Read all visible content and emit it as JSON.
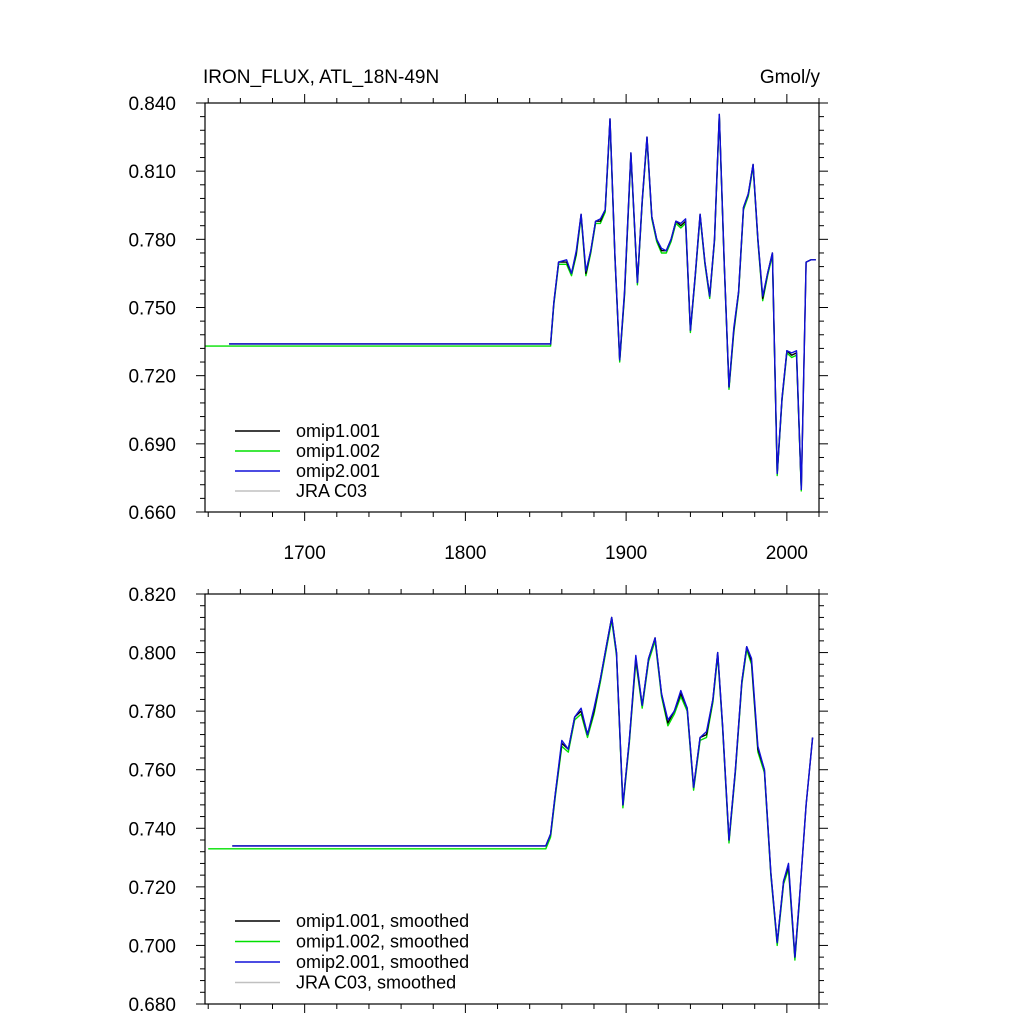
{
  "colors": {
    "omip1_001": "#000000",
    "omip1_002": "#00e000",
    "omip2_001": "#1010d8",
    "jra_c03": "#c0c0c0"
  },
  "chart_data": [
    {
      "type": "line",
      "title": "IRON_FLUX, ATL_18N-49N",
      "units": "Gmol/y",
      "xlim": [
        1638,
        2020
      ],
      "ylim": [
        0.66,
        0.84
      ],
      "yticks": [
        "0.660",
        "0.690",
        "0.720",
        "0.750",
        "0.780",
        "0.810",
        "0.840"
      ],
      "ytick_values": [
        0.66,
        0.69,
        0.72,
        0.75,
        0.78,
        0.81,
        0.84
      ],
      "xticks": [
        "1700",
        "1800",
        "1900",
        "2000"
      ],
      "xtick_values": [
        1700,
        1800,
        1900,
        2000
      ],
      "legend_position": "bottom-left",
      "series": [
        {
          "name": "omip1.001",
          "color_key": "omip1_001",
          "x": [
            1653,
            1853,
            1855,
            1858,
            1863,
            1866,
            1869,
            1872,
            1875,
            1878,
            1881,
            1884,
            1887,
            1890,
            1893,
            1896,
            1899,
            1903,
            1907,
            1910,
            1913,
            1916,
            1919,
            1922,
            1925,
            1928,
            1931,
            1934,
            1937,
            1940,
            1943,
            1946,
            1949,
            1952,
            1955,
            1958,
            1961,
            1964,
            1967,
            1970,
            1973,
            1976,
            1979,
            1982,
            1985,
            1988,
            1991,
            1994,
            1997,
            2000,
            2003,
            2006,
            2009,
            2012,
            2015,
            2018
          ],
          "y": [
            0.734,
            0.734,
            0.752,
            0.77,
            0.77,
            0.765,
            0.774,
            0.791,
            0.765,
            0.775,
            0.788,
            0.788,
            0.793,
            0.833,
            0.773,
            0.727,
            0.756,
            0.818,
            0.761,
            0.797,
            0.825,
            0.79,
            0.78,
            0.775,
            0.775,
            0.78,
            0.788,
            0.786,
            0.788,
            0.74,
            0.764,
            0.791,
            0.77,
            0.755,
            0.78,
            0.835,
            0.77,
            0.715,
            0.74,
            0.757,
            0.794,
            0.8,
            0.813,
            0.78,
            0.754,
            0.765,
            0.774,
            0.677,
            0.71,
            0.731,
            0.729,
            0.73,
            0.67,
            0.77,
            0.771,
            0.771
          ]
        },
        {
          "name": "omip1.002",
          "color_key": "omip1_002",
          "x": [
            1638,
            1853,
            1855,
            1858,
            1863,
            1866,
            1869,
            1872,
            1875,
            1878,
            1881,
            1884,
            1887,
            1890,
            1893,
            1896,
            1899,
            1903,
            1907,
            1910,
            1913,
            1916,
            1919,
            1922,
            1925,
            1928,
            1931,
            1934,
            1937,
            1940,
            1943,
            1946,
            1949,
            1952,
            1955,
            1958,
            1961,
            1964,
            1967,
            1970,
            1973,
            1976,
            1979,
            1982,
            1985,
            1988,
            1991,
            1994,
            1997,
            2000,
            2003,
            2006,
            2009
          ],
          "y": [
            0.733,
            0.733,
            0.751,
            0.769,
            0.769,
            0.764,
            0.773,
            0.79,
            0.764,
            0.774,
            0.787,
            0.787,
            0.792,
            0.832,
            0.772,
            0.726,
            0.755,
            0.817,
            0.76,
            0.796,
            0.824,
            0.789,
            0.779,
            0.774,
            0.774,
            0.779,
            0.787,
            0.785,
            0.787,
            0.739,
            0.763,
            0.79,
            0.769,
            0.754,
            0.779,
            0.834,
            0.769,
            0.714,
            0.739,
            0.756,
            0.793,
            0.799,
            0.812,
            0.779,
            0.753,
            0.764,
            0.773,
            0.676,
            0.709,
            0.73,
            0.728,
            0.729,
            0.669
          ]
        },
        {
          "name": "omip2.001",
          "color_key": "omip2_001",
          "x": [
            1653,
            1853,
            1855,
            1858,
            1863,
            1866,
            1869,
            1872,
            1875,
            1878,
            1881,
            1884,
            1887,
            1890,
            1893,
            1896,
            1899,
            1903,
            1907,
            1910,
            1913,
            1916,
            1919,
            1922,
            1925,
            1928,
            1931,
            1934,
            1937,
            1940,
            1943,
            1946,
            1949,
            1952,
            1955,
            1958,
            1961,
            1964,
            1967,
            1970,
            1973,
            1976,
            1979,
            1982,
            1985,
            1988,
            1991,
            1994,
            1997,
            2000,
            2003,
            2006,
            2009,
            2012,
            2015,
            2018
          ],
          "y": [
            0.734,
            0.734,
            0.752,
            0.77,
            0.771,
            0.765,
            0.775,
            0.791,
            0.766,
            0.775,
            0.788,
            0.789,
            0.793,
            0.833,
            0.773,
            0.727,
            0.757,
            0.818,
            0.761,
            0.797,
            0.825,
            0.79,
            0.78,
            0.776,
            0.775,
            0.78,
            0.788,
            0.787,
            0.789,
            0.74,
            0.764,
            0.791,
            0.77,
            0.755,
            0.78,
            0.835,
            0.77,
            0.715,
            0.741,
            0.757,
            0.794,
            0.8,
            0.813,
            0.78,
            0.755,
            0.765,
            0.774,
            0.677,
            0.71,
            0.731,
            0.73,
            0.731,
            0.67,
            0.77,
            0.771,
            0.771
          ]
        },
        {
          "name": "JRA C03",
          "color_key": "jra_c03",
          "x": [],
          "y": []
        }
      ]
    },
    {
      "type": "line",
      "title": "",
      "units": "",
      "xlim": [
        1638,
        2020
      ],
      "ylim": [
        0.68,
        0.82
      ],
      "yticks": [
        "0.680",
        "0.700",
        "0.720",
        "0.740",
        "0.760",
        "0.780",
        "0.800",
        "0.820"
      ],
      "ytick_values": [
        0.68,
        0.7,
        0.72,
        0.74,
        0.76,
        0.78,
        0.8,
        0.82
      ],
      "xticks": [],
      "xtick_values": [
        1700,
        1800,
        1900,
        2000
      ],
      "legend_position": "bottom-left",
      "series": [
        {
          "name": "omip1.001, smoothed",
          "color_key": "omip1_001",
          "x": [
            1655,
            1850,
            1853,
            1856,
            1860,
            1864,
            1868,
            1872,
            1876,
            1880,
            1884,
            1888,
            1891,
            1894,
            1898,
            1902,
            1906,
            1910,
            1914,
            1918,
            1922,
            1926,
            1930,
            1934,
            1938,
            1942,
            1946,
            1950,
            1954,
            1957,
            1960,
            1964,
            1968,
            1972,
            1975,
            1978,
            1982,
            1986,
            1990,
            1994,
            1998,
            2001,
            2005,
            2008,
            2012,
            2016
          ],
          "y": [
            0.734,
            0.734,
            0.738,
            0.752,
            0.769,
            0.767,
            0.778,
            0.78,
            0.772,
            0.78,
            0.791,
            0.803,
            0.812,
            0.8,
            0.748,
            0.77,
            0.798,
            0.782,
            0.798,
            0.805,
            0.786,
            0.776,
            0.78,
            0.786,
            0.781,
            0.754,
            0.771,
            0.772,
            0.784,
            0.8,
            0.775,
            0.736,
            0.76,
            0.79,
            0.802,
            0.797,
            0.767,
            0.76,
            0.725,
            0.701,
            0.722,
            0.727,
            0.696,
            0.717,
            0.748,
            0.771
          ]
        },
        {
          "name": "omip1.002, smoothed",
          "color_key": "omip1_002",
          "x": [
            1640,
            1850,
            1853,
            1856,
            1860,
            1864,
            1868,
            1872,
            1876,
            1880,
            1884,
            1888,
            1891,
            1894,
            1898,
            1902,
            1906,
            1910,
            1914,
            1918,
            1922,
            1926,
            1930,
            1934,
            1938,
            1942,
            1946,
            1950,
            1954,
            1957,
            1960,
            1964,
            1968,
            1972,
            1975,
            1978,
            1982,
            1986,
            1990,
            1994,
            1998,
            2001,
            2005,
            2008
          ],
          "y": [
            0.733,
            0.733,
            0.737,
            0.751,
            0.768,
            0.766,
            0.777,
            0.779,
            0.771,
            0.779,
            0.79,
            0.802,
            0.811,
            0.799,
            0.747,
            0.769,
            0.797,
            0.781,
            0.797,
            0.804,
            0.785,
            0.775,
            0.779,
            0.785,
            0.78,
            0.753,
            0.77,
            0.771,
            0.783,
            0.799,
            0.774,
            0.735,
            0.759,
            0.789,
            0.801,
            0.796,
            0.766,
            0.759,
            0.724,
            0.7,
            0.721,
            0.726,
            0.695,
            0.716
          ]
        },
        {
          "name": "omip2.001, smoothed",
          "color_key": "omip2_001",
          "x": [
            1655,
            1850,
            1853,
            1856,
            1860,
            1864,
            1868,
            1872,
            1876,
            1880,
            1884,
            1888,
            1891,
            1894,
            1898,
            1902,
            1906,
            1910,
            1914,
            1918,
            1922,
            1926,
            1930,
            1934,
            1938,
            1942,
            1946,
            1950,
            1954,
            1957,
            1960,
            1964,
            1968,
            1972,
            1975,
            1978,
            1982,
            1986,
            1990,
            1994,
            1998,
            2001,
            2005,
            2008,
            2012,
            2016
          ],
          "y": [
            0.734,
            0.734,
            0.738,
            0.752,
            0.77,
            0.767,
            0.778,
            0.781,
            0.772,
            0.781,
            0.791,
            0.803,
            0.812,
            0.8,
            0.748,
            0.77,
            0.799,
            0.782,
            0.798,
            0.805,
            0.786,
            0.777,
            0.78,
            0.787,
            0.781,
            0.754,
            0.771,
            0.773,
            0.784,
            0.8,
            0.775,
            0.736,
            0.76,
            0.79,
            0.802,
            0.798,
            0.768,
            0.76,
            0.725,
            0.701,
            0.722,
            0.728,
            0.696,
            0.717,
            0.748,
            0.771
          ]
        },
        {
          "name": "JRA C03, smoothed",
          "color_key": "jra_c03",
          "x": [],
          "y": []
        }
      ]
    }
  ]
}
